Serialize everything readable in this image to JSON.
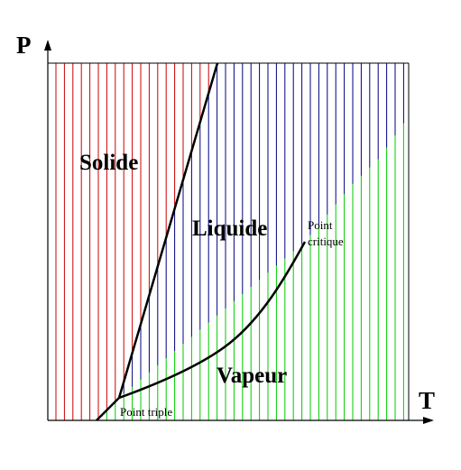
{
  "axes": {
    "y_label": "P",
    "x_label": "T"
  },
  "regions": {
    "solid": "Solide",
    "liquid": "Liquide",
    "vapour": "Vapeur"
  },
  "points": {
    "triple": "Point triple",
    "critical_line1": "Point",
    "critical_line2": "critique"
  },
  "colors": {
    "solid_hatch": "#cc0000",
    "liquid_hatch": "#000080",
    "vapour_hatch": "#00cc00",
    "boundary": "#000000",
    "axis": "#000000"
  }
}
